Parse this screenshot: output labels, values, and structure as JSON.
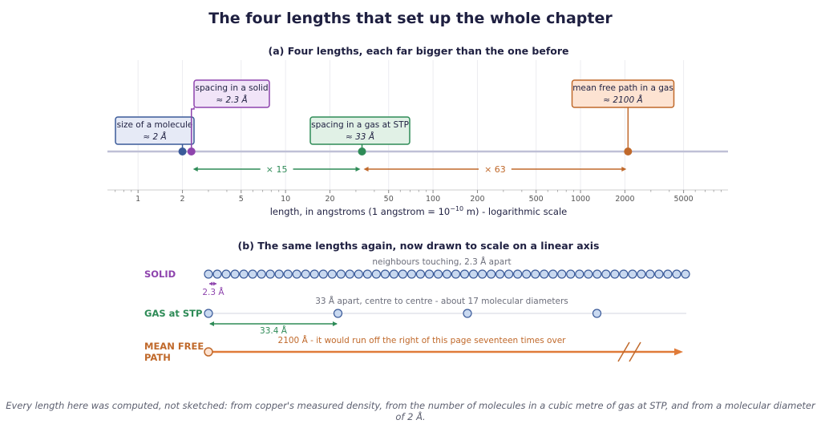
{
  "title": "The four lengths that set up the whole chapter",
  "panel_a": {
    "subtitle": "(a) Four lengths, each far bigger than the one before",
    "axis_label_pre": "length, in angstroms  (1 angstrom = 10",
    "axis_label_exp": "−10",
    "axis_label_post": " m) - logarithmic scale",
    "ticks": [
      {
        "value": 1,
        "label": "1"
      },
      {
        "value": 2,
        "label": "2"
      },
      {
        "value": 5,
        "label": "5"
      },
      {
        "value": 10,
        "label": "10"
      },
      {
        "value": 20,
        "label": "20"
      },
      {
        "value": 50,
        "label": "50"
      },
      {
        "value": 100,
        "label": "100"
      },
      {
        "value": 200,
        "label": "200"
      },
      {
        "value": 500,
        "label": "500"
      },
      {
        "value": 1000,
        "label": "1000"
      },
      {
        "value": 2000,
        "label": "2000"
      },
      {
        "value": 5000,
        "label": "5000"
      }
    ],
    "xlim": [
      0.62,
      10000
    ],
    "scale": "log",
    "points": [
      {
        "value": 2,
        "label": "size of a molecule",
        "sub": "≈ 2 Å",
        "color": "#3a5a99",
        "fill": "#e6eaf6"
      },
      {
        "value": 2.3,
        "label": "spacing in a solid",
        "sub": "≈ 2.3 Å",
        "color": "#8e44ad",
        "fill": "#f1e4f8"
      },
      {
        "value": 33,
        "label": "spacing in a gas at STP",
        "sub": "≈ 33 Å",
        "color": "#2e8b57",
        "fill": "#e1f1e6"
      },
      {
        "value": 2100,
        "label": "mean free path in a gas",
        "sub": "≈ 2100 Å",
        "color": "#c0692b",
        "fill": "#fde3d2"
      }
    ],
    "ratios": [
      {
        "from": 2.3,
        "to": 33,
        "label": "× 15",
        "color": "#2e8b57"
      },
      {
        "from": 33,
        "to": 2100,
        "label": "× 63",
        "color": "#c0692b"
      }
    ]
  },
  "panel_b": {
    "subtitle": "(b) The same lengths again, now drawn to scale on a linear axis",
    "rows": {
      "solid": {
        "label": "SOLID",
        "note": "neighbours touching, 2.3 Å apart",
        "measure": "2.3 Å",
        "color": "#8e44ad"
      },
      "gas": {
        "label": "GAS at STP",
        "note": "33 Å apart, centre to centre - about 17 molecular diameters",
        "measure": "33.4 Å",
        "color": "#2e8b57"
      },
      "mfp": {
        "label_line1": "MEAN FREE",
        "label_line2": "PATH",
        "note": "2100 Å - it would run off the right of this page seventeen times over",
        "color": "#c0692b"
      }
    },
    "molecule_color": "#3a5a99",
    "molecule_fill": "#c9d9f0",
    "solid_count": 55,
    "gas_count": 4
  },
  "caption": "Every length here was computed, not sketched: from copper's measured density, from the number of molecules in a cubic metre of gas at STP, and from a molecular diameter of 2 Å."
}
